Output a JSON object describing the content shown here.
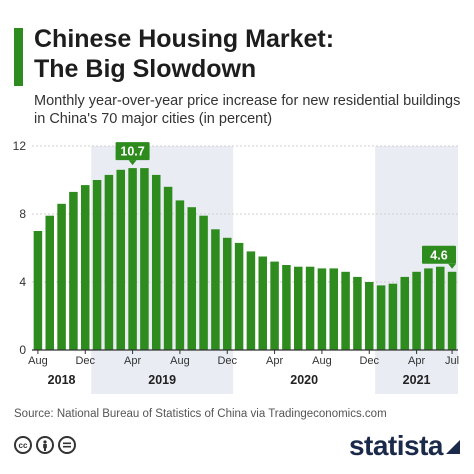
{
  "title_line1": "Chinese Housing Market:",
  "title_line2": "The Big Slowdown",
  "subtitle": "Monthly year-over-year price increase for new residential buildings in China's 70 major cities (in percent)",
  "source": "Source: National Bureau of Statistics of China via Tradingeconomics.com",
  "brand": "statista",
  "colors": {
    "bar": "#2e8b1e",
    "shade": "#e9ecf3",
    "accent": "#2e8b1e",
    "brand": "#1b2a4a"
  },
  "icons": [
    "cc-icon",
    "attribution-icon",
    "no-derivatives-icon"
  ],
  "chart_data": {
    "type": "bar",
    "ylim": [
      0,
      12
    ],
    "yticks": [
      0,
      4,
      8,
      12
    ],
    "month_ticks": [
      {
        "index": 0,
        "label": "Aug"
      },
      {
        "index": 4,
        "label": "Dec"
      },
      {
        "index": 8,
        "label": "Apr"
      },
      {
        "index": 12,
        "label": "Aug"
      },
      {
        "index": 16,
        "label": "Dec"
      },
      {
        "index": 20,
        "label": "Apr"
      },
      {
        "index": 24,
        "label": "Aug"
      },
      {
        "index": 28,
        "label": "Dec"
      },
      {
        "index": 32,
        "label": "Apr"
      },
      {
        "index": 35,
        "label": "Jul"
      }
    ],
    "year_bands": [
      {
        "label": "2018",
        "start": 0,
        "end": 4,
        "shaded": false
      },
      {
        "label": "2019",
        "start": 5,
        "end": 16,
        "shaded": true
      },
      {
        "label": "2020",
        "start": 17,
        "end": 28,
        "shaded": false
      },
      {
        "label": "2021",
        "start": 29,
        "end": 35,
        "shaded": true
      }
    ],
    "values": [
      7.0,
      7.9,
      8.6,
      9.3,
      9.7,
      10.0,
      10.3,
      10.6,
      10.7,
      10.7,
      10.3,
      9.6,
      8.8,
      8.4,
      7.9,
      7.1,
      6.6,
      6.3,
      5.8,
      5.5,
      5.2,
      5.0,
      4.9,
      4.9,
      4.8,
      4.8,
      4.6,
      4.3,
      4.0,
      3.8,
      3.9,
      4.3,
      4.6,
      4.8,
      4.9,
      4.6
    ],
    "callouts": [
      {
        "index": 8,
        "label": "10.7"
      },
      {
        "index": 35,
        "label": "4.6"
      }
    ]
  }
}
